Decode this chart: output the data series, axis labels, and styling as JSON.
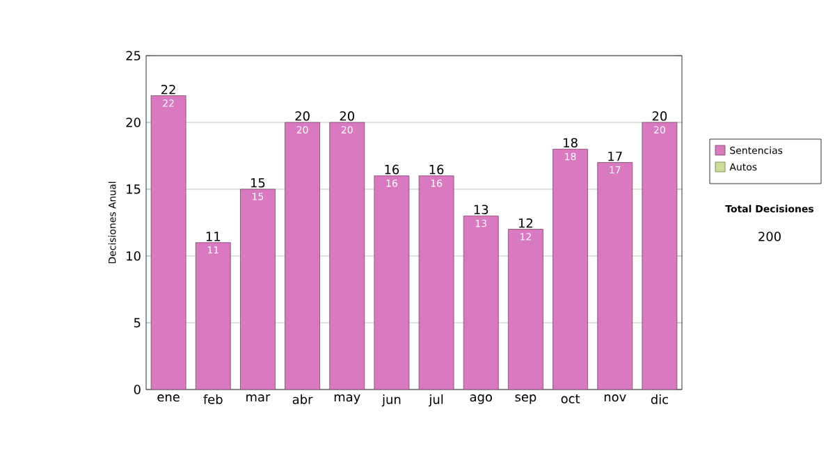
{
  "chart_data": {
    "type": "bar",
    "stacked": true,
    "ylabel": "Decisiones Anual",
    "categories": [
      "ene",
      "feb",
      "mar",
      "abr",
      "may",
      "jun",
      "jul",
      "ago",
      "sep",
      "oct",
      "nov",
      "dic"
    ],
    "series": [
      {
        "name": "Sentencias",
        "color": "#d97ac0",
        "values": [
          22,
          11,
          15,
          20,
          20,
          16,
          16,
          13,
          12,
          18,
          17,
          20
        ],
        "value_labels": [
          "22",
          "11",
          "15",
          "20",
          "20",
          "16",
          "16",
          "13",
          "12",
          "18",
          "17",
          "20"
        ]
      },
      {
        "name": "Autos",
        "color": "#ccdd99",
        "values": [
          0,
          0,
          0,
          0,
          0,
          0,
          0,
          0,
          0,
          0,
          0,
          0
        ]
      }
    ],
    "totals": [
      "22",
      "11",
      "15",
      "20",
      "20",
      "16",
      "16",
      "13",
      "12",
      "18",
      "17",
      "20"
    ],
    "ylim": [
      0,
      25
    ],
    "yticks": [
      0,
      5,
      10,
      15,
      20,
      25
    ],
    "grid": "y",
    "legend": "right",
    "annotations": [
      "Total Decisiones",
      "200"
    ]
  }
}
